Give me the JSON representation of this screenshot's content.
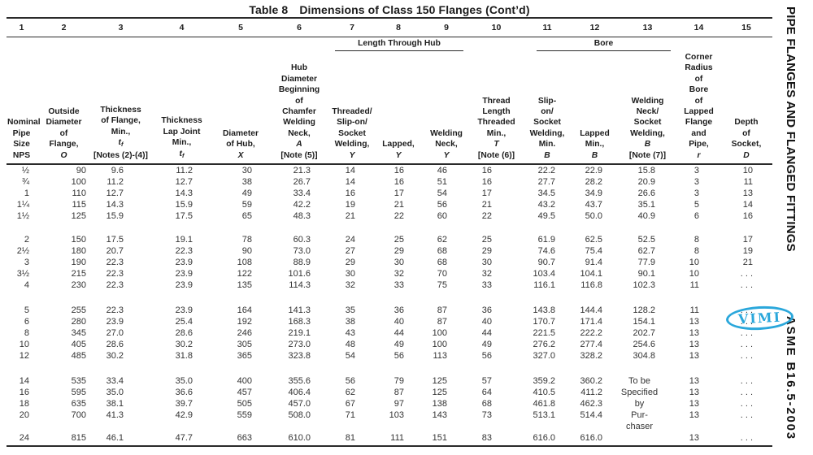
{
  "page": {
    "title_prefix": "Table 8",
    "title_main": "Dimensions of Class 150 Flanges (Cont’d)"
  },
  "sidebar": {
    "top_text": "PIPE FLANGES AND FLANGED FITTINGS",
    "bottom_text": "ASME B16.5-2003"
  },
  "stamp": {
    "text": "VIMI",
    "color": "#2aa7db"
  },
  "table": {
    "column_numbers": [
      "1",
      "2",
      "3",
      "4",
      "5",
      "6",
      "7",
      "8",
      "9",
      "10",
      "11",
      "12",
      "13",
      "14",
      "15"
    ],
    "spanners": {
      "length_through_hub": "Length Through Hub",
      "bore": "Bore"
    },
    "headers_html": [
      "Nominal<br>Pipe<br>Size<br>NPS",
      "Outside<br>Diameter<br>of<br>Flange,<br><i>O</i>",
      "Thickness<br>of Flange,<br>Min.,<br><i>t<sub>f</sub></i><br>[Notes (2)-(4)]",
      "Thickness<br>Lap Joint<br>Min.,<br><i>t<sub>f</sub></i>",
      "Diameter<br>of Hub,<br><i>X</i>",
      "Hub<br>Diameter<br>Beginning<br>of<br>Chamfer<br>Welding<br>Neck,<br><i>A</i><br>[Note (5)]",
      "Threaded/<br>Slip-on/<br>Socket<br>Welding,<br><i>Y</i>",
      "Lapped,<br><i>Y</i>",
      "Welding<br>Neck,<br><i>Y</i>",
      "Thread<br>Length<br>Threaded<br>Min.,<br><i>T</i><br>[Note (6)]",
      "Slip-<br>on/<br>Socket<br>Welding,<br>Min.<br><i>B</i>",
      "Lapped<br>Min.,<br><i>B</i>",
      "Welding<br>Neck/<br>Socket<br>Welding,<br><i>B</i><br>[Note (7)]",
      "Corner<br>Radius<br>of<br>Bore<br>of<br>Lapped<br>Flange<br>and<br>Pipe,<br><i>r</i>",
      "Depth<br>of<br>Socket,<br><i>D</i>"
    ],
    "groups": [
      [
        [
          "½",
          "90",
          "9.6",
          "11.2",
          "30",
          "21.3",
          "14",
          "16",
          "46",
          "16",
          "22.2",
          "22.9",
          "15.8",
          "3",
          "10"
        ],
        [
          "¾",
          "100",
          "11.2",
          "12.7",
          "38",
          "26.7",
          "14",
          "16",
          "51",
          "16",
          "27.7",
          "28.2",
          "20.9",
          "3",
          "11"
        ],
        [
          "1",
          "110",
          "12.7",
          "14.3",
          "49",
          "33.4",
          "16",
          "17",
          "54",
          "17",
          "34.5",
          "34.9",
          "26.6",
          "3",
          "13"
        ],
        [
          "1¼",
          "115",
          "14.3",
          "15.9",
          "59",
          "42.2",
          "19",
          "21",
          "56",
          "21",
          "43.2",
          "43.7",
          "35.1",
          "5",
          "14"
        ],
        [
          "1½",
          "125",
          "15.9",
          "17.5",
          "65",
          "48.3",
          "21",
          "22",
          "60",
          "22",
          "49.5",
          "50.0",
          "40.9",
          "6",
          "16"
        ]
      ],
      [
        [
          "2",
          "150",
          "17.5",
          "19.1",
          "78",
          "60.3",
          "24",
          "25",
          "62",
          "25",
          "61.9",
          "62.5",
          "52.5",
          "8",
          "17"
        ],
        [
          "2½",
          "180",
          "20.7",
          "22.3",
          "90",
          "73.0",
          "27",
          "29",
          "68",
          "29",
          "74.6",
          "75.4",
          "62.7",
          "8",
          "19"
        ],
        [
          "3",
          "190",
          "22.3",
          "23.9",
          "108",
          "88.9",
          "29",
          "30",
          "68",
          "30",
          "90.7",
          "91.4",
          "77.9",
          "10",
          "21"
        ],
        [
          "3½",
          "215",
          "22.3",
          "23.9",
          "122",
          "101.6",
          "30",
          "32",
          "70",
          "32",
          "103.4",
          "104.1",
          "90.1",
          "10",
          ". . ."
        ],
        [
          "4",
          "230",
          "22.3",
          "23.9",
          "135",
          "114.3",
          "32",
          "33",
          "75",
          "33",
          "116.1",
          "116.8",
          "102.3",
          "11",
          ". . ."
        ]
      ],
      [
        [
          "5",
          "255",
          "22.3",
          "23.9",
          "164",
          "141.3",
          "35",
          "36",
          "87",
          "36",
          "143.8",
          "144.4",
          "128.2",
          "11",
          ". . ."
        ],
        [
          "6",
          "280",
          "23.9",
          "25.4",
          "192",
          "168.3",
          "38",
          "40",
          "87",
          "40",
          "170.7",
          "171.4",
          "154.1",
          "13",
          ". . ."
        ],
        [
          "8",
          "345",
          "27.0",
          "28.6",
          "246",
          "219.1",
          "43",
          "44",
          "100",
          "44",
          "221.5",
          "222.2",
          "202.7",
          "13",
          ". . ."
        ],
        [
          "10",
          "405",
          "28.6",
          "30.2",
          "305",
          "273.0",
          "48",
          "49",
          "100",
          "49",
          "276.2",
          "277.4",
          "254.6",
          "13",
          ". . ."
        ],
        [
          "12",
          "485",
          "30.2",
          "31.8",
          "365",
          "323.8",
          "54",
          "56",
          "113",
          "56",
          "327.0",
          "328.2",
          "304.8",
          "13",
          ". . ."
        ]
      ],
      [
        [
          "14",
          "535",
          "33.4",
          "35.0",
          "400",
          "355.6",
          "56",
          "79",
          "125",
          "57",
          "359.2",
          "360.2",
          "To be",
          "13",
          ". . ."
        ],
        [
          "16",
          "595",
          "35.0",
          "36.6",
          "457",
          "406.4",
          "62",
          "87",
          "125",
          "64",
          "410.5",
          "411.2",
          "Specified",
          "13",
          ". . ."
        ],
        [
          "18",
          "635",
          "38.1",
          "39.7",
          "505",
          "457.0",
          "67",
          "97",
          "138",
          "68",
          "461.8",
          "462.3",
          "by",
          "13",
          ". . ."
        ],
        [
          "20",
          "700",
          "41.3",
          "42.9",
          "559",
          "508.0",
          "71",
          "103",
          "143",
          "73",
          "513.1",
          "514.4",
          "Pur-",
          "13",
          ". . ."
        ],
        [
          "",
          "",
          "",
          "",
          "",
          "",
          "",
          "",
          "",
          "",
          "",
          "",
          "chaser",
          "",
          ""
        ],
        [
          "24",
          "815",
          "46.1",
          "47.7",
          "663",
          "610.0",
          "81",
          "111",
          "151",
          "83",
          "616.0",
          "616.0",
          "",
          "13",
          ". . ."
        ]
      ]
    ]
  }
}
